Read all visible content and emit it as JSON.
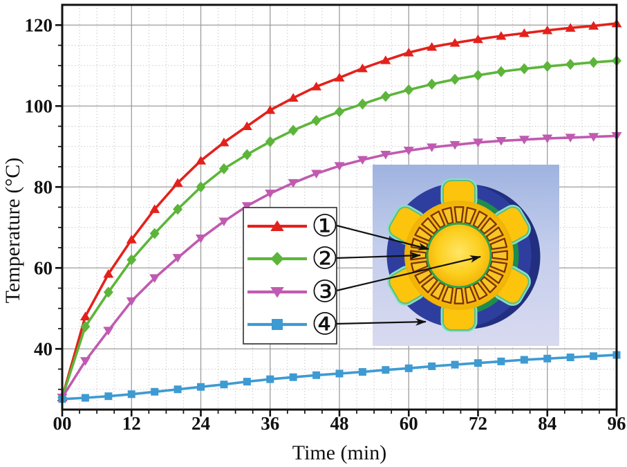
{
  "chart_data": {
    "type": "line",
    "title": "",
    "xlabel": "Time (min)",
    "ylabel": "Temperature (°C)",
    "xlim": [
      0,
      96
    ],
    "ylim": [
      25,
      125
    ],
    "grid": "major-solid-minor-dotted",
    "x_major_ticks": {
      "values": [
        0,
        12,
        24,
        36,
        48,
        60,
        72,
        84,
        96
      ],
      "labels": [
        "00",
        "12",
        "24",
        "36",
        "48",
        "60",
        "72",
        "84",
        "96"
      ]
    },
    "y_major_ticks": {
      "values": [
        40,
        60,
        80,
        100,
        120
      ],
      "labels": [
        "40",
        "60",
        "80",
        "100",
        "120"
      ]
    },
    "x_minor_step": 3,
    "y_minor_step": 5,
    "x": [
      0,
      4,
      8,
      12,
      16,
      20,
      24,
      28,
      32,
      36,
      40,
      44,
      48,
      52,
      56,
      60,
      64,
      68,
      72,
      76,
      80,
      84,
      88,
      92,
      96
    ],
    "series": [
      {
        "symbol": "①",
        "marker": "triangle-up",
        "color": "#e3211b",
        "values": [
          28,
          48,
          58.5,
          67,
          74.5,
          81,
          86.5,
          91,
          95,
          99,
          102,
          104.8,
          107,
          109.3,
          111.3,
          113.2,
          114.6,
          115.6,
          116.5,
          117.3,
          118,
          118.7,
          119.3,
          119.8,
          120.4
        ]
      },
      {
        "symbol": "②",
        "marker": "diamond",
        "color": "#5cb53a",
        "values": [
          28,
          45.5,
          54,
          62,
          68.5,
          74.5,
          80,
          84.5,
          88,
          91.2,
          94,
          96.4,
          98.6,
          100.5,
          102.4,
          104,
          105.4,
          106.6,
          107.6,
          108.5,
          109.2,
          109.8,
          110.3,
          110.8,
          111.2
        ]
      },
      {
        "symbol": "③",
        "marker": "triangle-down",
        "color": "#c05ab0",
        "values": [
          28,
          37,
          44.5,
          51.8,
          57.5,
          62.5,
          67.3,
          71.5,
          75.3,
          78.4,
          81,
          83.3,
          85.2,
          86.7,
          88,
          89,
          89.8,
          90.4,
          91,
          91.4,
          91.7,
          92,
          92.2,
          92.4,
          92.6
        ]
      },
      {
        "symbol": "④",
        "marker": "square",
        "color": "#3e9ad2",
        "values": [
          27.6,
          27.9,
          28.3,
          28.8,
          29.4,
          30,
          30.6,
          31.2,
          31.9,
          32.5,
          33,
          33.5,
          33.9,
          34.3,
          34.8,
          35.2,
          35.7,
          36.1,
          36.5,
          36.9,
          37.3,
          37.6,
          37.9,
          38.2,
          38.5
        ]
      }
    ],
    "legend": {
      "position": "center-left",
      "entries": [
        "①",
        "②",
        "③",
        "④"
      ]
    },
    "colors": {
      "axis": "#111111",
      "grid_major": "#9c9c9c",
      "grid_minor": "#c8c8c8",
      "housing_blue": "#2e3e9e",
      "stator_yellow": "#fcc40c",
      "slot_outline_brown": "#7b3008",
      "green_ring": "#1e8c4b"
    }
  }
}
